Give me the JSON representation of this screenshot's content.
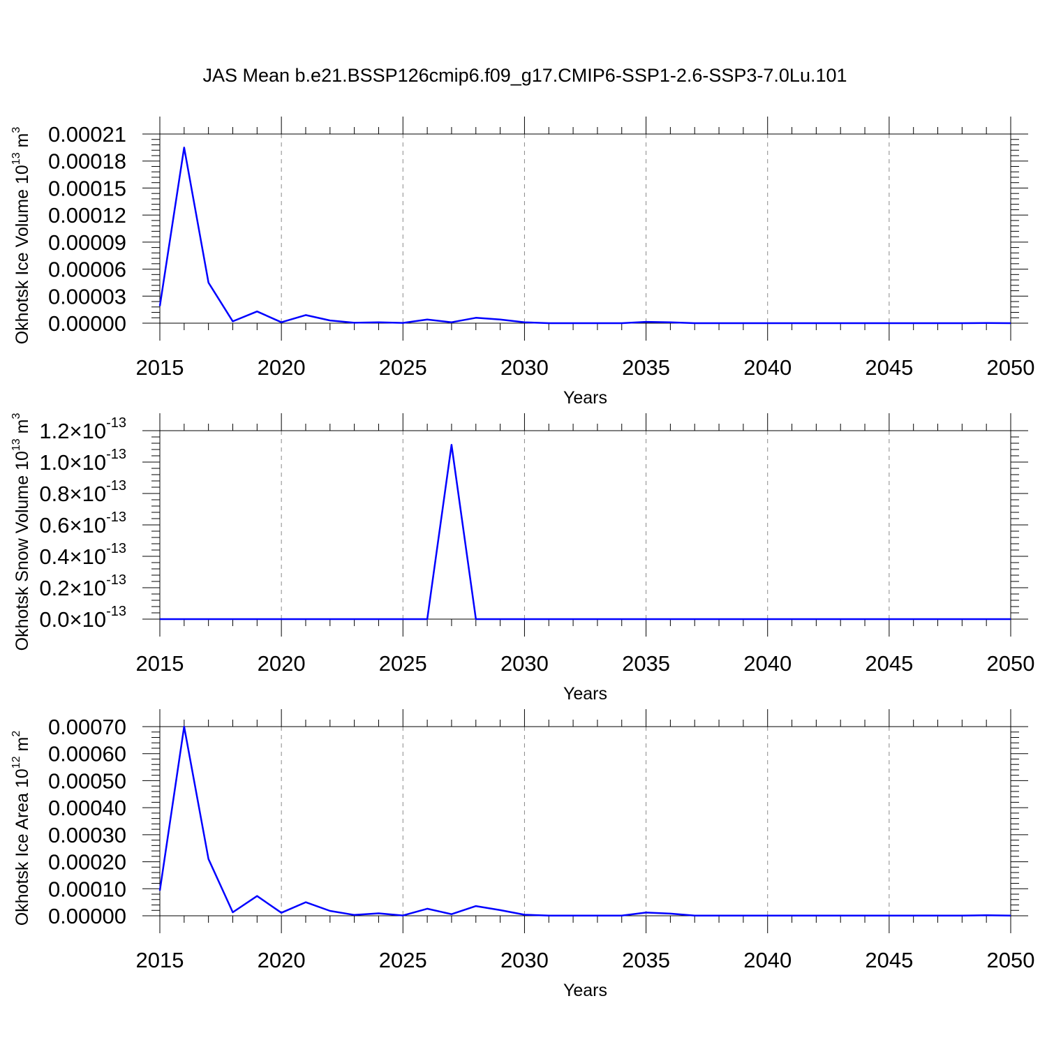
{
  "figure": {
    "title": "JAS Mean b.e21.BSSP126cmip6.f09_g17.CMIP6-SSP1-2.6-SSP3-7.0Lu.101"
  },
  "chart_data": [
    {
      "type": "line",
      "ylabel": "Okhotsk Ice Volume 10",
      "ylabel_exp": "13",
      "ylabel_unit": " m",
      "ylabel_unit_exp": "3",
      "xlabel": "Years",
      "xlim": [
        2015,
        2050
      ],
      "ylim": [
        0,
        0.00021
      ],
      "xticks": [
        2015,
        2020,
        2025,
        2030,
        2035,
        2040,
        2045,
        2050
      ],
      "xtick_labels": [
        "2015",
        "2020",
        "2025",
        "2030",
        "2035",
        "2040",
        "2045",
        "2050"
      ],
      "yticks": [
        0,
        3e-05,
        6e-05,
        9e-05,
        0.00012,
        0.00015,
        0.00018,
        0.00021
      ],
      "ytick_labels": [
        "0.00000",
        "0.00003",
        "0.00006",
        "0.00009",
        "0.00012",
        "0.00015",
        "0.00018",
        "0.00021"
      ],
      "ytick_exp": "",
      "grid": "vertical-dashed",
      "line_color": "#0000ff",
      "x": [
        2015,
        2016,
        2017,
        2018,
        2019,
        2020,
        2021,
        2022,
        2023,
        2024,
        2025,
        2026,
        2027,
        2028,
        2029,
        2030,
        2031,
        2032,
        2033,
        2034,
        2035,
        2036,
        2037,
        2038,
        2039,
        2040,
        2041,
        2042,
        2043,
        2044,
        2045,
        2046,
        2047,
        2048,
        2049,
        2050
      ],
      "values": [
        1.9e-05,
        0.000195,
        4.5e-05,
        2e-06,
        1.3e-05,
        1e-06,
        9e-06,
        3e-06,
        5e-07,
        1e-06,
        3e-07,
        4e-06,
        1e-06,
        6e-06,
        4e-06,
        1e-06,
        0.0,
        0.0,
        0.0,
        0.0,
        1.5e-06,
        1e-06,
        0.0,
        0.0,
        0.0,
        0.0,
        0.0,
        0.0,
        0.0,
        0.0,
        0.0,
        0.0,
        0.0,
        0.0,
        2e-07,
        0.0
      ]
    },
    {
      "type": "line",
      "ylabel": "Okhotsk Snow Volume 10",
      "ylabel_exp": "13",
      "ylabel_unit": " m",
      "ylabel_unit_exp": "3",
      "xlabel": "Years",
      "xlim": [
        2015,
        2050
      ],
      "ylim": [
        0,
        1.2e-13
      ],
      "xticks": [
        2015,
        2020,
        2025,
        2030,
        2035,
        2040,
        2045,
        2050
      ],
      "xtick_labels": [
        "2015",
        "2020",
        "2025",
        "2030",
        "2035",
        "2040",
        "2045",
        "2050"
      ],
      "yticks": [
        0,
        2e-14,
        4e-14,
        6e-14,
        8e-14,
        1e-13,
        1.2e-13
      ],
      "ytick_labels": [
        "0.0×10",
        "0.2×10",
        "0.4×10",
        "0.6×10",
        "0.8×10",
        "1.0×10",
        "1.2×10"
      ],
      "ytick_exp": "-13",
      "grid": "vertical-dashed",
      "line_color": "#0000ff",
      "x": [
        2015,
        2016,
        2017,
        2018,
        2019,
        2020,
        2021,
        2022,
        2023,
        2024,
        2025,
        2026,
        2027,
        2028,
        2029,
        2030,
        2031,
        2032,
        2033,
        2034,
        2035,
        2036,
        2037,
        2038,
        2039,
        2040,
        2041,
        2042,
        2043,
        2044,
        2045,
        2046,
        2047,
        2048,
        2049,
        2050
      ],
      "values": [
        0,
        0,
        0,
        0,
        0,
        0,
        0,
        0,
        0,
        0,
        0,
        0,
        1.11e-13,
        0,
        0,
        0,
        0,
        0,
        0,
        0,
        0,
        0,
        0,
        0,
        0,
        0,
        0,
        0,
        0,
        0,
        0,
        0,
        0,
        0,
        0,
        0
      ]
    },
    {
      "type": "line",
      "ylabel": "Okhotsk Ice Area 10",
      "ylabel_exp": "12",
      "ylabel_unit": " m",
      "ylabel_unit_exp": "2",
      "xlabel": "Years",
      "xlim": [
        2015,
        2050
      ],
      "ylim": [
        0,
        0.0007
      ],
      "xticks": [
        2015,
        2020,
        2025,
        2030,
        2035,
        2040,
        2045,
        2050
      ],
      "xtick_labels": [
        "2015",
        "2020",
        "2025",
        "2030",
        "2035",
        "2040",
        "2045",
        "2050"
      ],
      "yticks": [
        0,
        0.0001,
        0.0002,
        0.0003,
        0.0004,
        0.0005,
        0.0006,
        0.0007
      ],
      "ytick_labels": [
        "0.00000",
        "0.00010",
        "0.00020",
        "0.00030",
        "0.00040",
        "0.00050",
        "0.00060",
        "0.00070"
      ],
      "ytick_exp": "",
      "grid": "vertical-dashed",
      "line_color": "#0000ff",
      "x": [
        2015,
        2016,
        2017,
        2018,
        2019,
        2020,
        2021,
        2022,
        2023,
        2024,
        2025,
        2026,
        2027,
        2028,
        2029,
        2030,
        2031,
        2032,
        2033,
        2034,
        2035,
        2036,
        2037,
        2038,
        2039,
        2040,
        2041,
        2042,
        2043,
        2044,
        2045,
        2046,
        2047,
        2048,
        2049,
        2050
      ],
      "values": [
        9.3e-05,
        0.0007,
        0.00021,
        1.3e-05,
        7.3e-05,
        1.1e-05,
        5e-05,
        1.8e-05,
        3e-06,
        9e-06,
        1e-06,
        2.6e-05,
        6e-06,
        3.6e-05,
        2.1e-05,
        4e-06,
        5e-07,
        5e-07,
        5e-07,
        5e-07,
        1.2e-05,
        8e-06,
        5e-07,
        5e-07,
        5e-07,
        5e-07,
        5e-07,
        5e-07,
        5e-07,
        5e-07,
        5e-07,
        5e-07,
        5e-07,
        5e-07,
        2e-06,
        5e-07
      ]
    }
  ]
}
